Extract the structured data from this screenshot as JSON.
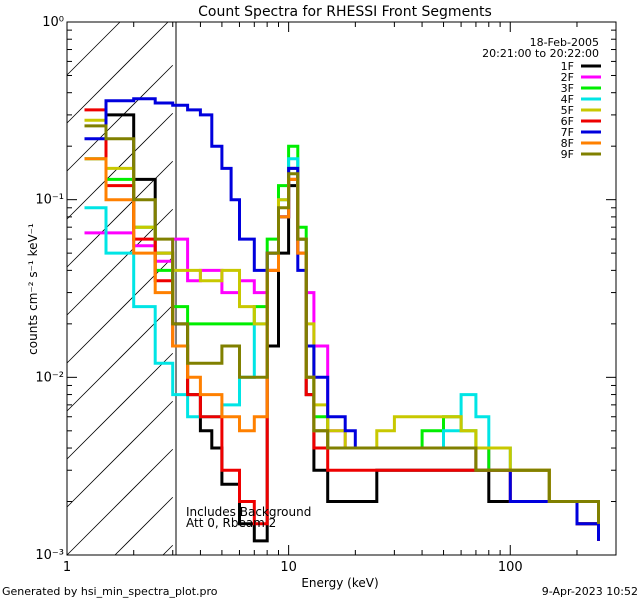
{
  "chart_data": {
    "type": "line",
    "title": "Count Spectra for RHESSI Front Segments",
    "xlabel": "Energy (keV)",
    "ylabel": "counts cm⁻² s⁻¹ keV⁻¹",
    "x_scale": "log",
    "y_scale": "log",
    "xlim": [
      1,
      300
    ],
    "ylim": [
      0.001,
      1
    ],
    "x_ticks": [
      {
        "value": 1,
        "label": "1"
      },
      {
        "value": 10,
        "label": "10"
      },
      {
        "value": 100,
        "label": "100"
      }
    ],
    "y_ticks": [
      {
        "value": 1,
        "label": "10⁰"
      },
      {
        "value": 0.1,
        "label": "10⁻¹"
      },
      {
        "value": 0.01,
        "label": "10⁻²"
      },
      {
        "value": 0.001,
        "label": "10⁻³"
      }
    ],
    "date": "18-Feb-2005",
    "time_range": "20:21:00 to 20:22:00",
    "annotations": [
      "Includes Background",
      "Att 0, Rbeam 2"
    ],
    "shaded_region": {
      "x_from": 1,
      "x_to": 3,
      "pattern": "hatched"
    },
    "legend_position": "top-right",
    "series": [
      {
        "name": "1F",
        "color": "#000000",
        "x": [
          1.5,
          2,
          2.5,
          3,
          3.5,
          4,
          4.5,
          5,
          6,
          7,
          8,
          9,
          10,
          11,
          12,
          13,
          15,
          18,
          20,
          25,
          30,
          40,
          50,
          60,
          70,
          80,
          100,
          150,
          200,
          250
        ],
        "y": [
          0.3,
          0.13,
          0.05,
          0.02,
          0.008,
          0.005,
          0.004,
          0.0025,
          0.0015,
          0.0012,
          0.015,
          0.05,
          0.12,
          0.06,
          0.008,
          0.003,
          0.002,
          0.002,
          0.002,
          0.003,
          0.003,
          0.003,
          0.003,
          0.003,
          0.003,
          0.002,
          0.002,
          0.002,
          0.0015,
          0.0012
        ]
      },
      {
        "name": "2F",
        "color": "#ff00ff",
        "x": [
          1.2,
          1.5,
          2,
          2.5,
          3,
          3.5,
          4,
          5,
          6,
          7,
          8,
          9,
          10,
          11,
          12,
          13,
          15,
          18,
          20,
          25,
          30,
          40,
          50,
          60,
          70,
          80,
          100,
          150,
          200,
          250
        ],
        "y": [
          0.065,
          0.065,
          0.055,
          0.045,
          0.06,
          0.035,
          0.04,
          0.03,
          0.035,
          0.03,
          0.05,
          0.08,
          0.15,
          0.06,
          0.03,
          0.015,
          0.005,
          0.004,
          0.004,
          0.004,
          0.004,
          0.004,
          0.004,
          0.004,
          0.004,
          0.003,
          0.003,
          0.002,
          0.002,
          0.0015
        ]
      },
      {
        "name": "3F",
        "color": "#00ee00",
        "x": [
          1.2,
          1.5,
          2,
          2.5,
          3,
          3.5,
          4,
          5,
          6,
          7,
          8,
          9,
          10,
          11,
          12,
          13,
          15,
          18,
          20,
          25,
          30,
          40,
          50,
          60,
          70,
          80,
          100,
          150,
          200,
          250
        ],
        "y": [
          0.17,
          0.13,
          0.07,
          0.04,
          0.025,
          0.02,
          0.02,
          0.02,
          0.02,
          0.025,
          0.06,
          0.12,
          0.2,
          0.07,
          0.015,
          0.006,
          0.004,
          0.004,
          0.004,
          0.004,
          0.004,
          0.005,
          0.006,
          0.005,
          0.004,
          0.003,
          0.003,
          0.002,
          0.002,
          0.0015
        ]
      },
      {
        "name": "4F",
        "color": "#00e5e5",
        "x": [
          1.2,
          1.5,
          2,
          2.5,
          3,
          3.5,
          4,
          5,
          6,
          7,
          8,
          9,
          10,
          11,
          12,
          13,
          15,
          18,
          20,
          25,
          30,
          40,
          50,
          60,
          70,
          80,
          100,
          150,
          200,
          250
        ],
        "y": [
          0.09,
          0.05,
          0.025,
          0.012,
          0.008,
          0.006,
          0.006,
          0.007,
          0.01,
          0.02,
          0.05,
          0.1,
          0.17,
          0.06,
          0.01,
          0.005,
          0.004,
          0.004,
          0.004,
          0.004,
          0.004,
          0.004,
          0.005,
          0.008,
          0.006,
          0.004,
          0.003,
          0.002,
          0.002,
          0.0015
        ]
      },
      {
        "name": "5F",
        "color": "#c8c800",
        "x": [
          1.2,
          1.5,
          2,
          2.5,
          3,
          3.5,
          4,
          5,
          6,
          7,
          8,
          9,
          10,
          11,
          12,
          13,
          15,
          18,
          20,
          25,
          30,
          40,
          50,
          60,
          70,
          80,
          100,
          150,
          200,
          250
        ],
        "y": [
          0.28,
          0.15,
          0.07,
          0.05,
          0.04,
          0.04,
          0.035,
          0.04,
          0.025,
          0.02,
          0.05,
          0.1,
          0.15,
          0.06,
          0.02,
          0.007,
          0.005,
          0.004,
          0.004,
          0.005,
          0.006,
          0.006,
          0.006,
          0.005,
          0.004,
          0.004,
          0.003,
          0.002,
          0.002,
          0.0015
        ]
      },
      {
        "name": "6F",
        "color": "#ee0000",
        "x": [
          1.2,
          1.5,
          2,
          2.5,
          3,
          3.5,
          4,
          5,
          6,
          7,
          8,
          9,
          10,
          11,
          12,
          13,
          15,
          18,
          20,
          25,
          30,
          40,
          50,
          60,
          70,
          80,
          100,
          150,
          200,
          250
        ],
        "y": [
          0.32,
          0.12,
          0.06,
          0.035,
          0.015,
          0.008,
          0.006,
          0.003,
          0.002,
          0.0015,
          0.04,
          0.08,
          0.13,
          0.05,
          0.008,
          0.004,
          0.003,
          0.003,
          0.003,
          0.003,
          0.003,
          0.003,
          0.003,
          0.003,
          0.003,
          0.003,
          0.002,
          0.002,
          0.0015,
          0.0012
        ]
      },
      {
        "name": "7F",
        "color": "#0000dd",
        "x": [
          1.2,
          1.5,
          2,
          2.5,
          3,
          3.5,
          4,
          4.5,
          5,
          5.5,
          6,
          7,
          8,
          9,
          10,
          11,
          12,
          13,
          15,
          18,
          20,
          25,
          30,
          40,
          50,
          60,
          70,
          80,
          100,
          150,
          200,
          250
        ],
        "y": [
          0.22,
          0.36,
          0.37,
          0.35,
          0.34,
          0.32,
          0.3,
          0.2,
          0.15,
          0.1,
          0.06,
          0.04,
          0.05,
          0.08,
          0.15,
          0.04,
          0.015,
          0.01,
          0.006,
          0.005,
          0.004,
          0.004,
          0.004,
          0.004,
          0.004,
          0.004,
          0.003,
          0.003,
          0.002,
          0.002,
          0.0015,
          0.0012
        ]
      },
      {
        "name": "8F",
        "color": "#ff8000",
        "x": [
          1.2,
          1.5,
          2,
          2.5,
          3,
          3.5,
          4,
          5,
          6,
          7,
          8,
          9,
          10,
          11,
          12,
          13,
          15,
          18,
          20,
          25,
          30,
          40,
          50,
          60,
          70,
          80,
          100,
          150,
          200,
          250
        ],
        "y": [
          0.17,
          0.1,
          0.05,
          0.03,
          0.015,
          0.01,
          0.008,
          0.006,
          0.005,
          0.006,
          0.04,
          0.08,
          0.13,
          0.05,
          0.01,
          0.005,
          0.004,
          0.004,
          0.004,
          0.004,
          0.004,
          0.004,
          0.004,
          0.004,
          0.003,
          0.003,
          0.003,
          0.002,
          0.002,
          0.0015
        ]
      },
      {
        "name": "9F",
        "color": "#808000",
        "x": [
          1.2,
          1.5,
          2,
          2.5,
          3,
          3.5,
          4,
          5,
          6,
          7,
          8,
          9,
          10,
          11,
          12,
          13,
          15,
          18,
          20,
          25,
          30,
          40,
          50,
          60,
          70,
          80,
          100,
          150,
          200,
          250
        ],
        "y": [
          0.26,
          0.22,
          0.1,
          0.06,
          0.02,
          0.012,
          0.012,
          0.015,
          0.01,
          0.01,
          0.05,
          0.09,
          0.14,
          0.06,
          0.01,
          0.005,
          0.004,
          0.004,
          0.004,
          0.004,
          0.004,
          0.004,
          0.004,
          0.004,
          0.003,
          0.003,
          0.003,
          0.002,
          0.002,
          0.0015
        ]
      }
    ]
  },
  "footer": {
    "generated": "Generated by hsi_min_spectra_plot.pro",
    "timestamp": "9-Apr-2023 10:52"
  }
}
